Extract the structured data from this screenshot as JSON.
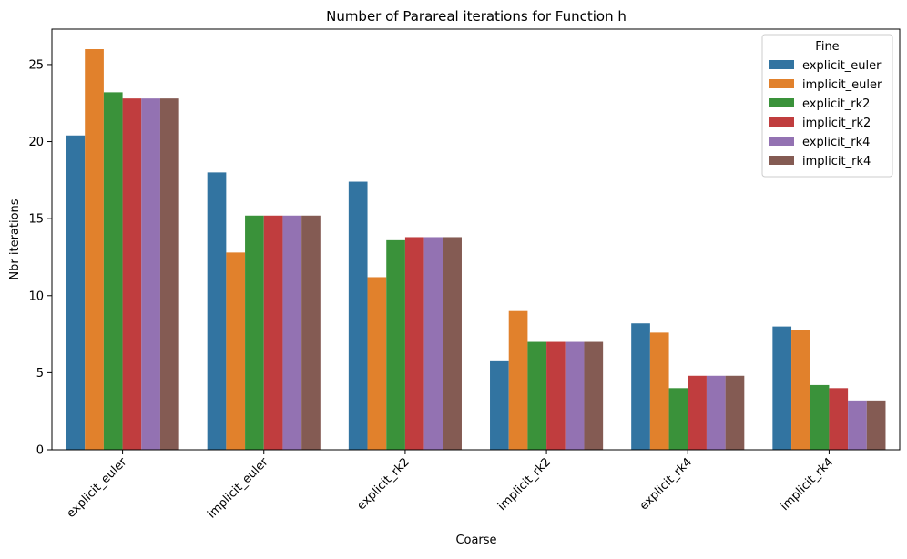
{
  "chart_data": {
    "type": "bar",
    "title": "Number of Parareal iterations for Function h",
    "xlabel": "Coarse",
    "ylabel": "Nbr iterations",
    "categories": [
      "explicit_euler",
      "implicit_euler",
      "explicit_rk2",
      "implicit_rk2",
      "explicit_rk4",
      "implicit_rk4"
    ],
    "ylim": [
      0,
      27.3
    ],
    "yticks": [
      "0",
      "5",
      "10",
      "15",
      "20",
      "25"
    ],
    "legend": {
      "title": "Fine",
      "placement": "top-right"
    },
    "series": [
      {
        "name": "explicit_euler",
        "color": "#3274a1",
        "values": [
          20.4,
          18.0,
          17.4,
          5.8,
          8.2,
          8.0
        ]
      },
      {
        "name": "implicit_euler",
        "color": "#e1812c",
        "values": [
          26.0,
          12.8,
          11.2,
          9.0,
          7.6,
          7.8
        ]
      },
      {
        "name": "explicit_rk2",
        "color": "#3a923a",
        "values": [
          23.2,
          15.2,
          13.6,
          7.0,
          4.0,
          4.2
        ]
      },
      {
        "name": "implicit_rk2",
        "color": "#c03d3e",
        "values": [
          22.8,
          15.2,
          13.8,
          7.0,
          4.8,
          4.0
        ]
      },
      {
        "name": "explicit_rk4",
        "color": "#9372b2",
        "values": [
          22.8,
          15.2,
          13.8,
          7.0,
          4.8,
          3.2
        ]
      },
      {
        "name": "implicit_rk4",
        "color": "#845b53",
        "values": [
          22.8,
          15.2,
          13.8,
          7.0,
          4.8,
          3.2
        ]
      }
    ],
    "grid": false
  }
}
